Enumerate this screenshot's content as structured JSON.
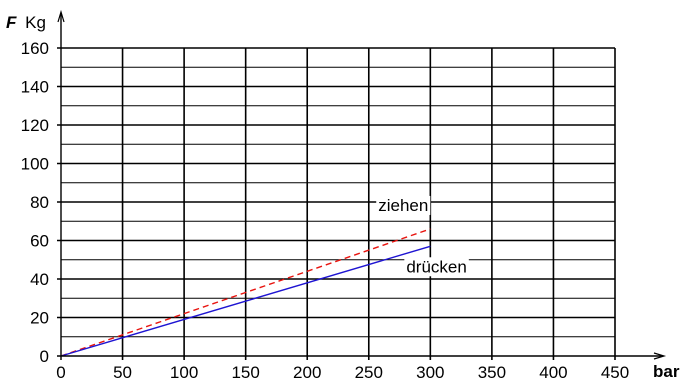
{
  "chart_data": {
    "type": "line",
    "ylabel_symbol": "F",
    "ylabel_unit": "Kg",
    "xlabel": "bar",
    "xlim": [
      0,
      450
    ],
    "ylim": [
      0,
      160
    ],
    "x_ticks": [
      0,
      50,
      100,
      150,
      200,
      250,
      300,
      350,
      400,
      450
    ],
    "y_ticks": [
      0,
      20,
      40,
      60,
      80,
      100,
      120,
      140,
      160
    ],
    "y_minor_step": 10,
    "grid": true,
    "series": [
      {
        "name": "ziehen",
        "x": [
          0,
          300
        ],
        "y": [
          0,
          66
        ],
        "color": "#e8140f",
        "style": "dashed"
      },
      {
        "name": "drücken",
        "x": [
          0,
          300
        ],
        "y": [
          0,
          57
        ],
        "color": "#1e14d2",
        "style": "solid"
      }
    ]
  }
}
